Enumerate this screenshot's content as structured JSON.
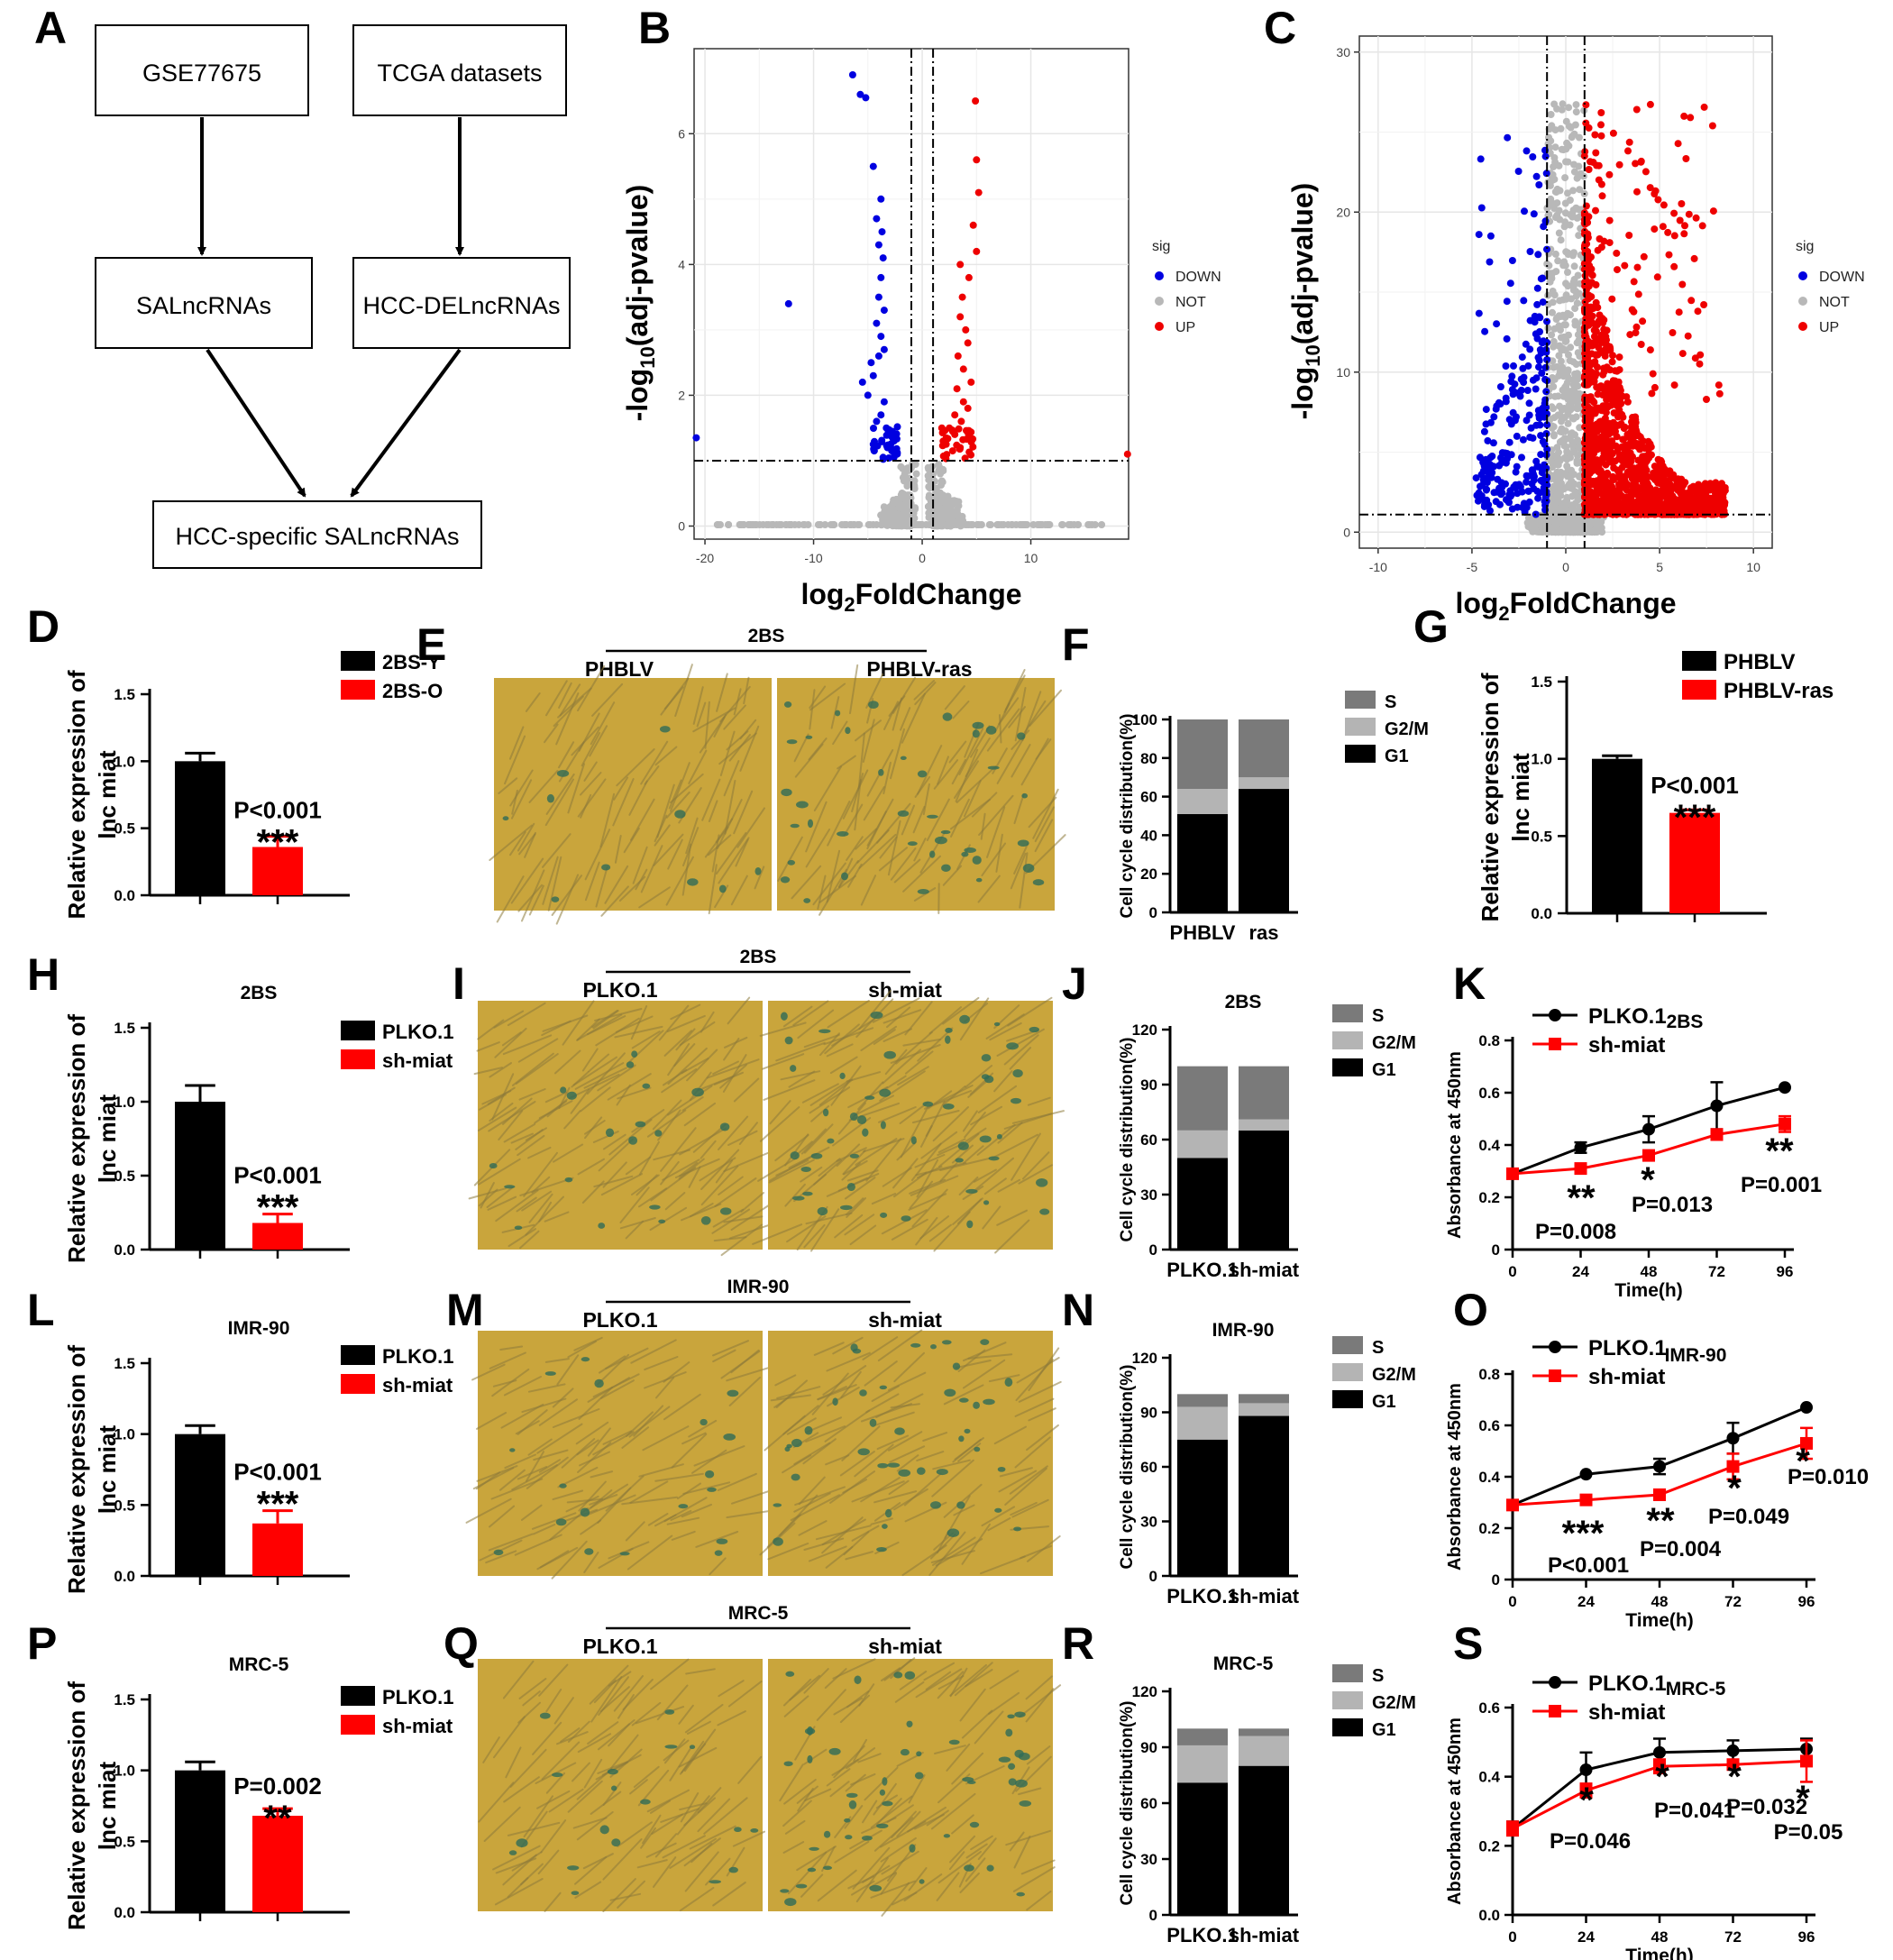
{
  "panel_letters": {
    "A": "A",
    "B": "B",
    "C": "C",
    "D": "D",
    "E": "E",
    "F": "F",
    "G": "G",
    "H": "H",
    "I": "I",
    "J": "J",
    "K": "K",
    "L": "L",
    "M": "M",
    "N": "N",
    "O": "O",
    "P": "P",
    "Q": "Q",
    "R": "R",
    "S": "S"
  },
  "flow": {
    "box1": "GSE77675",
    "box2": "TCGA datasets",
    "box3": "SALncRNAs",
    "box4": "HCC-DELncRNAs",
    "box5": "HCC-specific SALncRNAs"
  },
  "colors": {
    "down": "#0000e0",
    "up": "#ee0000",
    "not": "#b8b8b8",
    "black": "#000000",
    "red": "#ff0000",
    "s": "#7a7a7a",
    "g2m": "#b4b4b4",
    "g1": "#000000",
    "micro_bg": "#c9a53c"
  },
  "volcano_common": {
    "xlabel_main": "log",
    "xlabel_sub": "2",
    "xlabel_rest": "FoldChange",
    "ylabel_main": "-log",
    "ylabel_sub": "10",
    "ylabel_rest": "(adj-pvalue)",
    "legend_title": "sig",
    "legend": [
      "DOWN",
      "NOT",
      "UP"
    ]
  },
  "volcanoB": {
    "x_ticks": [
      "-20",
      "-10",
      "0",
      "10"
    ],
    "y_ticks": [
      "0",
      "2",
      "4",
      "6"
    ],
    "xlim": [
      -21,
      19
    ],
    "ylim": [
      -0.2,
      7.3
    ],
    "vlines": [
      -1,
      1
    ],
    "hline": 1
  },
  "volcanoC": {
    "x_ticks": [
      "-10",
      "-5",
      "0",
      "5",
      "10"
    ],
    "y_ticks": [
      "0",
      "10",
      "20",
      "30"
    ],
    "xlim": [
      -11,
      11
    ],
    "ylim": [
      -1,
      31
    ],
    "vlines": [
      -1,
      1
    ],
    "hline": 1.1
  },
  "bar_common": {
    "ylabel1": "Relative expression of",
    "ylabel2": "lnc miat"
  },
  "barD": {
    "legend": [
      "2BS-Y",
      "2BS-O"
    ],
    "y_ticks": [
      "0.0",
      "0.5",
      "1.0",
      "1.5"
    ],
    "values": [
      1.0,
      0.36
    ],
    "errors": [
      0.06,
      0.08
    ],
    "pval": "P<0.001",
    "stars": "***",
    "title": ""
  },
  "barG": {
    "legend": [
      "PHBLV",
      "PHBLV-ras"
    ],
    "y_ticks": [
      "0.0",
      "0.5",
      "1.0",
      "1.5"
    ],
    "values": [
      1.0,
      0.65
    ],
    "errors": [
      0.02,
      0.02
    ],
    "pval": "P<0.001",
    "stars": "***",
    "title": ""
  },
  "barH": {
    "legend": [
      "PLKO.1",
      "sh-miat"
    ],
    "y_ticks": [
      "0.0",
      "0.5",
      "1.0",
      "1.5"
    ],
    "values": [
      1.0,
      0.18
    ],
    "errors": [
      0.11,
      0.06
    ],
    "pval": "P<0.001",
    "stars": "***",
    "title": "2BS"
  },
  "barL": {
    "legend": [
      "PLKO.1",
      "sh-miat"
    ],
    "y_ticks": [
      "0.0",
      "0.5",
      "1.0",
      "1.5"
    ],
    "values": [
      1.0,
      0.37
    ],
    "errors": [
      0.06,
      0.09
    ],
    "pval": "P<0.001",
    "stars": "***",
    "title": "IMR-90"
  },
  "barP": {
    "legend": [
      "PLKO.1",
      "sh-miat"
    ],
    "y_ticks": [
      "0.0",
      "0.5",
      "1.0",
      "1.5"
    ],
    "values": [
      1.0,
      0.68
    ],
    "errors": [
      0.06,
      0.05
    ],
    "pval": "P=0.002",
    "stars": "**",
    "title": "MRC-5"
  },
  "micro": {
    "E": {
      "title": "2BS",
      "left": "PHBLV",
      "right": "PHBLV-ras"
    },
    "I": {
      "title": "2BS",
      "left": "PLKO.1",
      "right": "sh-miat"
    },
    "M": {
      "title": "IMR-90",
      "left": "PLKO.1",
      "right": "sh-miat"
    },
    "Q": {
      "title": "MRC-5",
      "left": "PLKO.1",
      "right": "sh-miat"
    }
  },
  "cycle_common": {
    "ylabel": "Cell cycle distribution(%)",
    "legend": [
      "S",
      "G2/M",
      "G1"
    ]
  },
  "cycleF": {
    "title": "",
    "categories": [
      "PHBLV",
      "ras"
    ],
    "y_ticks": [
      "0",
      "20",
      "40",
      "60",
      "80",
      "100"
    ],
    "ymax": 100,
    "G1": [
      51,
      64
    ],
    "G2M": [
      13,
      6
    ],
    "S": [
      36,
      30
    ]
  },
  "cycleJ": {
    "title": "2BS",
    "categories": [
      "PLKO.1",
      "sh-miat"
    ],
    "y_ticks": [
      "0",
      "30",
      "60",
      "90",
      "120"
    ],
    "ymax": 120,
    "G1": [
      50,
      65
    ],
    "G2M": [
      15,
      6
    ],
    "S": [
      35,
      29
    ]
  },
  "cycleN": {
    "title": "IMR-90",
    "categories": [
      "PLKO.1",
      "sh-miat"
    ],
    "y_ticks": [
      "0",
      "30",
      "60",
      "90",
      "120"
    ],
    "ymax": 120,
    "G1": [
      75,
      88
    ],
    "G2M": [
      18,
      7
    ],
    "S": [
      7,
      5
    ]
  },
  "cycleR": {
    "title": "MRC-5",
    "categories": [
      "PLKO.1",
      "sh-miat"
    ],
    "y_ticks": [
      "0",
      "30",
      "60",
      "90",
      "120"
    ],
    "ymax": 120,
    "G1": [
      71,
      80
    ],
    "G2M": [
      20,
      16
    ],
    "S": [
      9,
      4
    ]
  },
  "line_common": {
    "ylabel": "Absorbance at 450nm",
    "xlabel": "Time(h)",
    "legend": [
      "PLKO.1",
      "sh-miat"
    ],
    "x": [
      0,
      24,
      48,
      72,
      96
    ],
    "x_ticks": [
      "0",
      "24",
      "48",
      "72",
      "96"
    ]
  },
  "lineK": {
    "title": "2BS",
    "y_ticks": [
      "0",
      "0.2",
      "0.4",
      "0.6",
      "0.8"
    ],
    "ymax": 0.8,
    "plko": [
      0.29,
      0.39,
      0.46,
      0.55,
      0.62
    ],
    "plko_err": [
      0,
      0.02,
      0.05,
      0.09,
      0
    ],
    "sh": [
      0.29,
      0.31,
      0.36,
      0.44,
      0.48
    ],
    "sh_err": [
      0,
      0.01,
      0.01,
      0.02,
      0.03
    ],
    "annos": [
      {
        "stars": "**",
        "p": "P=0.008"
      },
      {
        "stars": "*",
        "p": "P=0.013"
      },
      {
        "stars": "**",
        "p": "P=0.001"
      }
    ]
  },
  "lineO": {
    "title": "IMR-90",
    "y_ticks": [
      "0",
      "0.2",
      "0.4",
      "0.6",
      "0.8"
    ],
    "ymax": 0.8,
    "plko": [
      0.29,
      0.41,
      0.44,
      0.55,
      0.67
    ],
    "plko_err": [
      0,
      0,
      0.03,
      0.06,
      0
    ],
    "sh": [
      0.29,
      0.31,
      0.33,
      0.44,
      0.53
    ],
    "sh_err": [
      0,
      0.01,
      0.01,
      0.05,
      0.06
    ],
    "annos": [
      {
        "stars": "***",
        "p": "P<0.001"
      },
      {
        "stars": "**",
        "p": "P=0.004"
      },
      {
        "stars": "*",
        "p": "P=0.049"
      },
      {
        "stars": "*",
        "p": "P=0.010"
      }
    ]
  },
  "lineS": {
    "title": "MRC-5",
    "y_ticks": [
      "0.0",
      "0.2",
      "0.4",
      "0.6"
    ],
    "ymax": 0.6,
    "plko": [
      0.25,
      0.42,
      0.47,
      0.475,
      0.48
    ],
    "plko_err": [
      0.02,
      0.05,
      0.04,
      0.03,
      0.03
    ],
    "sh": [
      0.25,
      0.36,
      0.43,
      0.435,
      0.445
    ],
    "sh_err": [
      0.02,
      0.02,
      0.02,
      0.01,
      0.06
    ],
    "annos": [
      {
        "stars": "*",
        "p": "P=0.046"
      },
      {
        "stars": "*",
        "p": "P=0.041"
      },
      {
        "stars": "*",
        "p": "P=0.032"
      },
      {
        "stars": "*",
        "p": "P=0.05"
      }
    ]
  },
  "chart_data": [
    {
      "type": "scatter",
      "panel": "B",
      "xlabel": "log2FoldChange",
      "ylabel": "-log10(adj-pvalue)",
      "legend": [
        "DOWN",
        "NOT",
        "UP"
      ],
      "xlim": [
        -21,
        19
      ],
      "ylim": [
        0,
        7
      ]
    },
    {
      "type": "scatter",
      "panel": "C",
      "xlabel": "log2FoldChange",
      "ylabel": "-log10(adj-pvalue)",
      "legend": [
        "DOWN",
        "NOT",
        "UP"
      ],
      "xlim": [
        -11,
        11
      ],
      "ylim": [
        0,
        31
      ]
    },
    {
      "type": "bar",
      "panel": "D",
      "categories": [
        "2BS-Y",
        "2BS-O"
      ],
      "values": [
        1.0,
        0.36
      ],
      "ylim": [
        0,
        1.5
      ]
    },
    {
      "type": "bar",
      "panel": "F",
      "categories": [
        "PHBLV",
        "ras"
      ],
      "series": [
        {
          "name": "G1",
          "values": [
            51,
            64
          ]
        },
        {
          "name": "G2/M",
          "values": [
            13,
            6
          ]
        },
        {
          "name": "S",
          "values": [
            36,
            30
          ]
        }
      ]
    },
    {
      "type": "bar",
      "panel": "G",
      "categories": [
        "PHBLV",
        "PHBLV-ras"
      ],
      "values": [
        1.0,
        0.65
      ],
      "ylim": [
        0,
        1.5
      ]
    },
    {
      "type": "bar",
      "panel": "H",
      "categories": [
        "PLKO.1",
        "sh-miat"
      ],
      "values": [
        1.0,
        0.18
      ],
      "ylim": [
        0,
        1.5
      ]
    },
    {
      "type": "bar",
      "panel": "J",
      "categories": [
        "PLKO.1",
        "sh-miat"
      ],
      "series": [
        {
          "name": "G1",
          "values": [
            50,
            65
          ]
        },
        {
          "name": "G2/M",
          "values": [
            15,
            6
          ]
        },
        {
          "name": "S",
          "values": [
            35,
            29
          ]
        }
      ]
    },
    {
      "type": "line",
      "panel": "K",
      "x": [
        0,
        24,
        48,
        72,
        96
      ],
      "series": [
        {
          "name": "PLKO.1",
          "values": [
            0.29,
            0.39,
            0.46,
            0.55,
            0.62
          ]
        },
        {
          "name": "sh-miat",
          "values": [
            0.29,
            0.31,
            0.36,
            0.44,
            0.48
          ]
        }
      ]
    },
    {
      "type": "bar",
      "panel": "L",
      "categories": [
        "PLKO.1",
        "sh-miat"
      ],
      "values": [
        1.0,
        0.37
      ],
      "ylim": [
        0,
        1.5
      ]
    },
    {
      "type": "bar",
      "panel": "N",
      "categories": [
        "PLKO.1",
        "sh-miat"
      ],
      "series": [
        {
          "name": "G1",
          "values": [
            75,
            88
          ]
        },
        {
          "name": "G2/M",
          "values": [
            18,
            7
          ]
        },
        {
          "name": "S",
          "values": [
            7,
            5
          ]
        }
      ]
    },
    {
      "type": "line",
      "panel": "O",
      "x": [
        0,
        24,
        48,
        72,
        96
      ],
      "series": [
        {
          "name": "PLKO.1",
          "values": [
            0.29,
            0.41,
            0.44,
            0.55,
            0.67
          ]
        },
        {
          "name": "sh-miat",
          "values": [
            0.29,
            0.31,
            0.33,
            0.44,
            0.53
          ]
        }
      ]
    },
    {
      "type": "bar",
      "panel": "P",
      "categories": [
        "PLKO.1",
        "sh-miat"
      ],
      "values": [
        1.0,
        0.68
      ],
      "ylim": [
        0,
        1.5
      ]
    },
    {
      "type": "bar",
      "panel": "R",
      "categories": [
        "PLKO.1",
        "sh-miat"
      ],
      "series": [
        {
          "name": "G1",
          "values": [
            71,
            80
          ]
        },
        {
          "name": "G2/M",
          "values": [
            20,
            16
          ]
        },
        {
          "name": "S",
          "values": [
            9,
            4
          ]
        }
      ]
    },
    {
      "type": "line",
      "panel": "S",
      "x": [
        0,
        24,
        48,
        72,
        96
      ],
      "series": [
        {
          "name": "PLKO.1",
          "values": [
            0.25,
            0.42,
            0.47,
            0.475,
            0.48
          ]
        },
        {
          "name": "sh-miat",
          "values": [
            0.25,
            0.36,
            0.43,
            0.435,
            0.445
          ]
        }
      ]
    }
  ]
}
